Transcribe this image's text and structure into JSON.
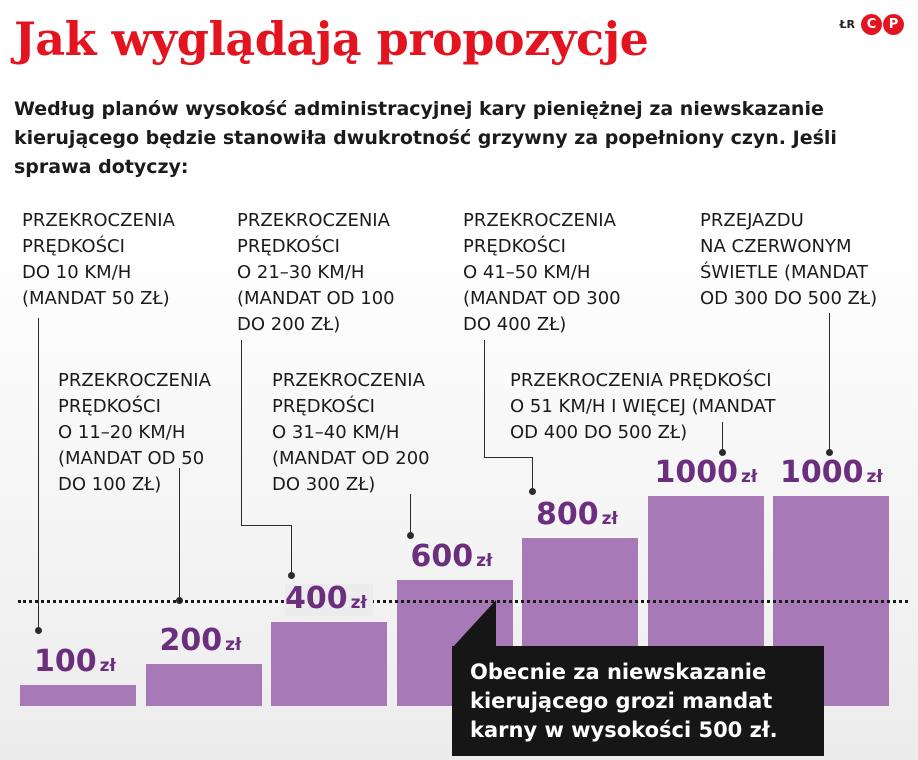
{
  "header": {
    "title": "Jak wyglądają propozycje",
    "credit": "ŁR",
    "logo": [
      "C",
      "P"
    ],
    "intro": "Według planów wysokość administracyjnej kary pieniężnej za niewskazanie kierującego będzie stanowiła dwukrotność grzywny za popełniony czyn. Jeśli sprawa dotyczy:"
  },
  "categories": [
    "PRZEKROCZENIA\nPRĘDKOŚCI\nDO 10 KM/H\n(MANDAT 50 ZŁ)",
    "PRZEKROCZENIA\nPRĘDKOŚCI\nO 11–20 KM/H\n(MANDAT OD 50\nDO 100 ZŁ)",
    "PRZEKROCZENIA\nPRĘDKOŚCI\nO 21–30 KM/H\n(MANDAT OD 100\nDO 200 ZŁ)",
    "PRZEKROCZENIA\nPRĘDKOŚCI\nO 31–40 KM/H\n(MANDAT OD 200\nDO 300 ZŁ)",
    "PRZEKROCZENIA\nPRĘDKOŚCI\nO 41–50 KM/H\n(MANDAT OD 300\nDO 400 ZŁ)",
    "PRZEKROCZENIA PRĘDKOŚCI\nO 51 KM/H I WIĘCEJ (MANDAT\nOD 400 DO 500 ZŁ)",
    "PRZEJAZDU\nNA CZERWONYM\nŚWIETLE (MANDAT\nOD 300 DO 500 ZŁ)"
  ],
  "value_labels": [
    "100",
    "200",
    "400",
    "600",
    "800",
    "1000",
    "1000"
  ],
  "unit": "zł",
  "callout": "Obecnie za niewskazanie kierującego grozi mandat karny w wysokości 500 zł.",
  "chart_data": {
    "type": "bar",
    "title": "Jak wyglądają propozycje",
    "categories": [
      "PRZEKROCZENIA PRĘDKOŚCI DO 10 KM/H (MANDAT 50 ZŁ)",
      "PRZEKROCZENIA PRĘDKOŚCI O 11–20 KM/H (MANDAT OD 50 DO 100 ZŁ)",
      "PRZEKROCZENIA PRĘDKOŚCI O 21–30 KM/H (MANDAT OD 100 DO 200 ZŁ)",
      "PRZEKROCZENIA PRĘDKOŚCI O 31–40 KM/H (MANDAT OD 200 DO 300 ZŁ)",
      "PRZEKROCZENIA PRĘDKOŚCI O 41–50 KM/H (MANDAT OD 300 DO 400 ZŁ)",
      "PRZEKROCZENIA PRĘDKOŚCI O 51 KM/H I WIĘCEJ (MANDAT OD 400 DO 500 ZŁ)",
      "PRZEJAZDU NA CZERWONYM ŚWIETLE (MANDAT OD 300 DO 500 ZŁ)"
    ],
    "values": [
      100,
      200,
      400,
      600,
      800,
      1000,
      1000
    ],
    "unit": "zł",
    "reference_line": 500,
    "ylim": [
      0,
      1000
    ],
    "bar_color": "#a879b7",
    "value_color": "#6b2f7e",
    "title_color": "#e3141f",
    "grid": false,
    "legend": "none"
  }
}
